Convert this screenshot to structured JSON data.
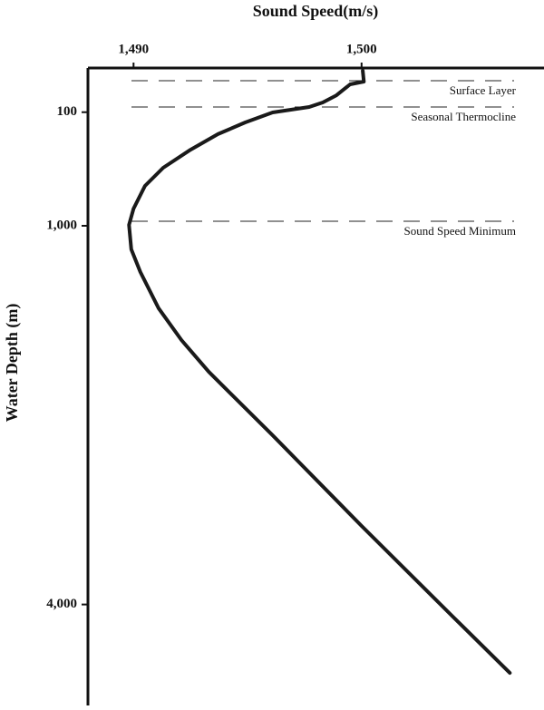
{
  "chart_data": {
    "type": "line",
    "title": "Sound Speed(m/s)",
    "y_label": "Water Depth (m)",
    "xlim": [
      1488,
      1508
    ],
    "xticks": [
      {
        "value": 1490,
        "label": "1,490"
      },
      {
        "value": 1500,
        "label": "1,500"
      }
    ],
    "ylim": [
      -250,
      4800
    ],
    "y_reversed": true,
    "yticks": [
      100,
      {
        "value": 1000,
        "label": "1,000"
      },
      {
        "value": 4000,
        "label": "4,000"
      }
    ],
    "series": [
      {
        "color": "#1a1a1a",
        "x": [
          1500.05,
          1500.1,
          1499.5,
          1498.9,
          1498.3,
          1497.7,
          1496.1,
          1494.9,
          1493.7,
          1492.5,
          1491.3,
          1490.5,
          1490.0,
          1489.8,
          1489.9,
          1490.3,
          1491.1,
          1492.1,
          1493.3,
          1496.1,
          1500.0,
          1504.0,
          1506.5
        ],
        "values": [
          -228,
          -142,
          -121,
          -34,
          23,
          59,
          102,
          181,
          274,
          397,
          540,
          684,
          864,
          993,
          1187,
          1366,
          1654,
          1905,
          2157,
          2660,
          3378,
          4096,
          4542
        ]
      }
    ],
    "reference_lines": [
      {
        "value": -149,
        "label": "Surface Layer"
      },
      {
        "value": 59,
        "label": "Seasonal Thermocline"
      },
      {
        "value": 964,
        "label": "Sound Speed Minimum"
      }
    ]
  }
}
